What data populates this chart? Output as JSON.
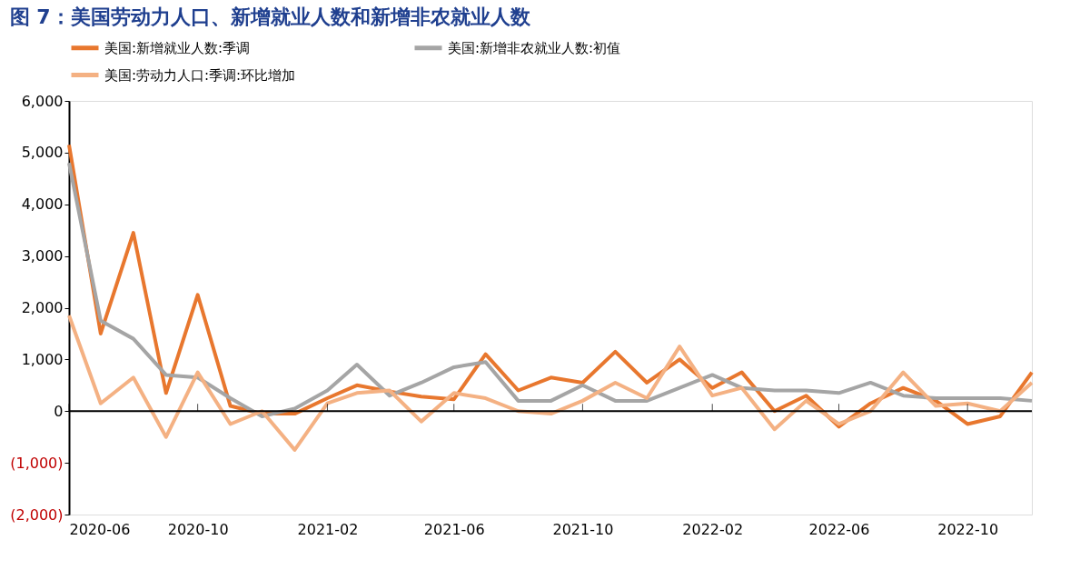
{
  "chart_data": {
    "type": "line",
    "title": "图 7：美国劳动力人口、新增就业人数和新增非农就业人数",
    "x": [
      "2020-06",
      "2020-07",
      "2020-08",
      "2020-09",
      "2020-10",
      "2020-11",
      "2020-12",
      "2021-01",
      "2021-02",
      "2021-03",
      "2021-04",
      "2021-05",
      "2021-06",
      "2021-07",
      "2021-08",
      "2021-09",
      "2021-10",
      "2021-11",
      "2021-12",
      "2022-01",
      "2022-02",
      "2022-03",
      "2022-04",
      "2022-05",
      "2022-06",
      "2022-07",
      "2022-08",
      "2022-09",
      "2022-10",
      "2022-11",
      "2022-12"
    ],
    "series": [
      {
        "name": "美国:新增就业人数:季调",
        "color": "#e8772e",
        "values": [
          5150,
          1500,
          3450,
          350,
          2250,
          100,
          -50,
          -50,
          250,
          500,
          380,
          280,
          230,
          1100,
          400,
          650,
          550,
          1150,
          550,
          1000,
          450,
          750,
          0,
          300,
          -300,
          150,
          450,
          200,
          -250,
          -100,
          750
        ]
      },
      {
        "name": "美国:新增非农就业人数:初值",
        "color": "#a5a5a5",
        "values": [
          4800,
          1750,
          1400,
          700,
          650,
          250,
          -100,
          50,
          400,
          900,
          300,
          550,
          850,
          950,
          200,
          200,
          500,
          200,
          200,
          450,
          700,
          450,
          400,
          400,
          350,
          550,
          300,
          250,
          250,
          250,
          200
        ]
      },
      {
        "name": "美国:劳动力人口:季调:环比增加",
        "color": "#f4b183",
        "values": [
          1850,
          150,
          650,
          -500,
          750,
          -250,
          0,
          -750,
          150,
          350,
          400,
          -200,
          350,
          250,
          0,
          -50,
          200,
          550,
          250,
          1250,
          300,
          450,
          -350,
          200,
          -250,
          0,
          750,
          100,
          150,
          0,
          550
        ]
      }
    ],
    "xlim": [
      "2020-06",
      "2022-12"
    ],
    "xticks": [
      "2020-06",
      "2020-10",
      "2021-02",
      "2021-06",
      "2021-10",
      "2022-02",
      "2022-06",
      "2022-10"
    ],
    "ylim": [
      -2000,
      6000
    ],
    "yticks": [
      {
        "value": -2000,
        "label": "(2,000)"
      },
      {
        "value": -1000,
        "label": "(1,000)"
      },
      {
        "value": 0,
        "label": "0"
      },
      {
        "value": 1000,
        "label": "1,000"
      },
      {
        "value": 2000,
        "label": "2,000"
      },
      {
        "value": 3000,
        "label": "3,000"
      },
      {
        "value": 4000,
        "label": "4,000"
      },
      {
        "value": 5000,
        "label": "5,000"
      },
      {
        "value": 6000,
        "label": "6,000"
      }
    ],
    "ref_lines": [
      {
        "axis": "y",
        "value": 0,
        "color": "#000000"
      }
    ],
    "grid": false,
    "legend": "top",
    "marker": "none",
    "line_style": "solid"
  }
}
